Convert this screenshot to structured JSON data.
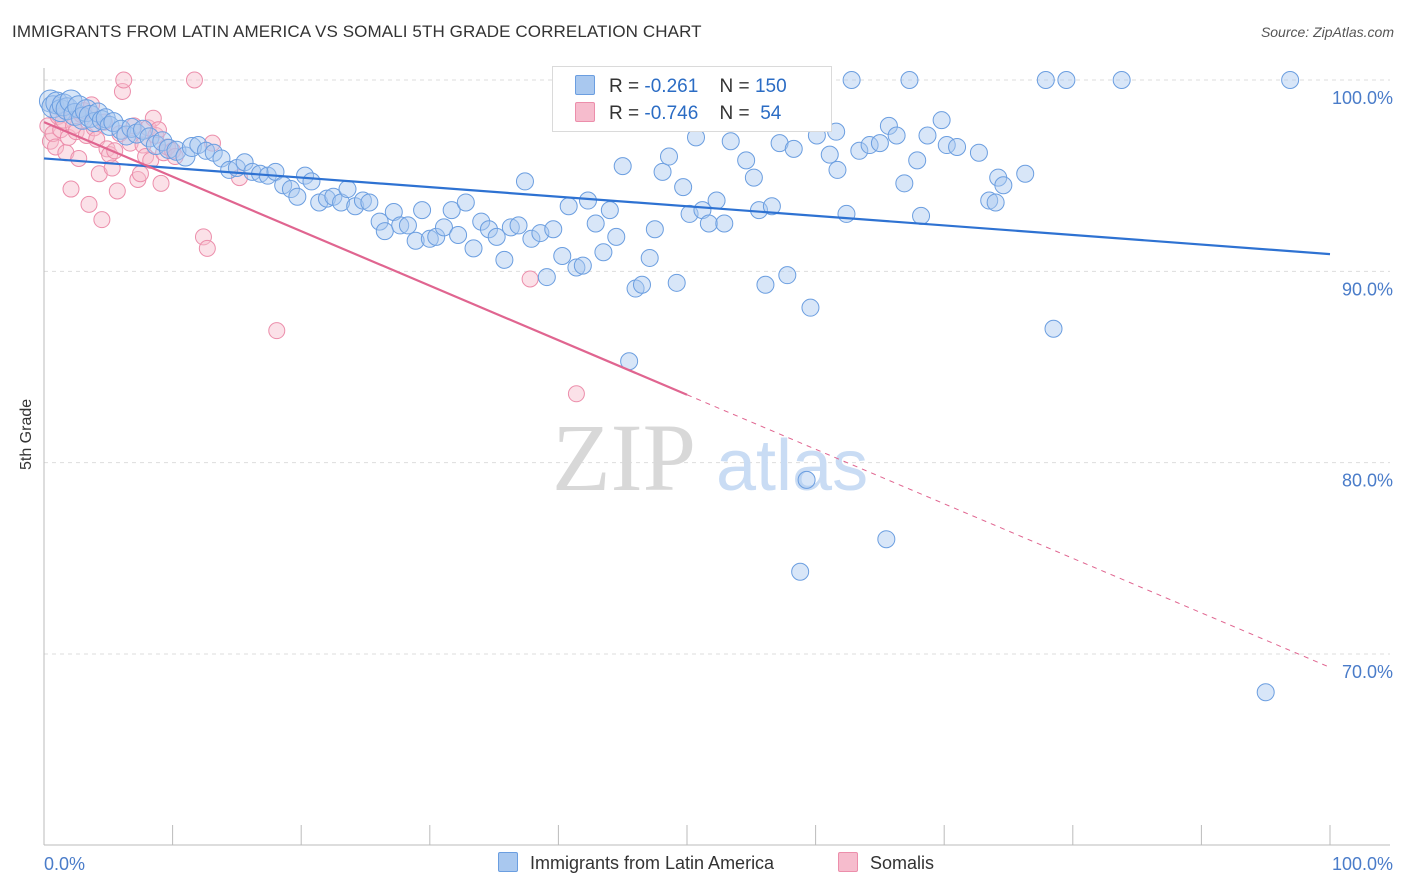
{
  "header": {
    "title": "IMMIGRANTS FROM LATIN AMERICA VS SOMALI 5TH GRADE CORRELATION CHART",
    "source": "Source: ZipAtlas.com"
  },
  "watermark": {
    "zip": "ZIP",
    "atlas": "atlas"
  },
  "legend_top": {
    "rows": [
      {
        "r_label": "R =",
        "r_value": "-0.261",
        "n_label": "N =",
        "n_value": "150"
      },
      {
        "r_label": "R =",
        "r_value": "-0.746",
        "n_label": "N =",
        "n_value": " 54"
      }
    ]
  },
  "legend_bottom": {
    "items": [
      {
        "label": "Immigrants from Latin America"
      },
      {
        "label": "Somalis"
      }
    ]
  },
  "colors": {
    "blue_fill": "#a9c8ef",
    "blue_stroke": "#6b9ee0",
    "blue_line": "#2e72d2",
    "pink_fill": "#f6bccd",
    "pink_stroke": "#ec8eab",
    "pink_line": "#e06590",
    "tick_text": "#4a7cc9",
    "grid": "#dddddd"
  },
  "chart_data": {
    "type": "scatter",
    "title": "IMMIGRANTS FROM LATIN AMERICA VS SOMALI 5TH GRADE CORRELATION CHART",
    "xlabel": "",
    "ylabel": "5th Grade",
    "xlim": [
      0,
      100
    ],
    "ylim": [
      60,
      103.5
    ],
    "x_tick_labels": [
      "0.0%",
      "100.0%"
    ],
    "y_ticks": [
      70,
      80,
      90,
      100
    ],
    "y_tick_labels": [
      "70.0%",
      "80.0%",
      "90.0%",
      "100.0%"
    ],
    "grid": true,
    "legend_placement": "top-center",
    "series": [
      {
        "name": "Immigrants from Latin America",
        "color": "#a9c8ef",
        "trend": {
          "x": [
            0,
            100
          ],
          "y": [
            95.9,
            90.9
          ],
          "solid_until": 100
        },
        "points": [
          [
            0.5,
            98.9
          ],
          [
            0.7,
            98.6
          ],
          [
            1.0,
            98.8
          ],
          [
            1.3,
            98.4
          ],
          [
            1.5,
            98.7
          ],
          [
            1.8,
            98.5
          ],
          [
            2.1,
            98.9
          ],
          [
            2.4,
            98.2
          ],
          [
            2.7,
            98.6
          ],
          [
            3.0,
            98.0
          ],
          [
            3.3,
            98.4
          ],
          [
            3.6,
            98.1
          ],
          [
            3.9,
            97.8
          ],
          [
            4.2,
            98.3
          ],
          [
            4.5,
            97.9
          ],
          [
            4.8,
            98.0
          ],
          [
            5.1,
            97.6
          ],
          [
            5.4,
            97.8
          ],
          [
            6.0,
            97.4
          ],
          [
            6.4,
            97.1
          ],
          [
            6.8,
            97.5
          ],
          [
            7.2,
            97.2
          ],
          [
            7.7,
            97.4
          ],
          [
            8.2,
            97.0
          ],
          [
            8.7,
            96.6
          ],
          [
            9.2,
            96.8
          ],
          [
            9.7,
            96.4
          ],
          [
            10.3,
            96.3
          ],
          [
            11.0,
            96.0
          ],
          [
            11.5,
            96.5
          ],
          [
            12.0,
            96.6
          ],
          [
            12.6,
            96.3
          ],
          [
            13.2,
            96.2
          ],
          [
            13.8,
            95.9
          ],
          [
            14.4,
            95.3
          ],
          [
            15.0,
            95.4
          ],
          [
            15.6,
            95.7
          ],
          [
            16.2,
            95.2
          ],
          [
            16.8,
            95.1
          ],
          [
            17.4,
            95.0
          ],
          [
            18.0,
            95.2
          ],
          [
            18.6,
            94.5
          ],
          [
            19.2,
            94.3
          ],
          [
            19.7,
            93.9
          ],
          [
            20.3,
            95.0
          ],
          [
            20.8,
            94.7
          ],
          [
            21.4,
            93.6
          ],
          [
            22.0,
            93.8
          ],
          [
            22.5,
            93.9
          ],
          [
            23.1,
            93.6
          ],
          [
            23.6,
            94.3
          ],
          [
            24.2,
            93.4
          ],
          [
            24.8,
            93.7
          ],
          [
            25.3,
            93.6
          ],
          [
            26.1,
            92.6
          ],
          [
            26.5,
            92.1
          ],
          [
            27.2,
            93.1
          ],
          [
            27.7,
            92.4
          ],
          [
            28.3,
            92.4
          ],
          [
            28.9,
            91.6
          ],
          [
            29.4,
            93.2
          ],
          [
            30.0,
            91.7
          ],
          [
            30.5,
            91.8
          ],
          [
            31.1,
            92.3
          ],
          [
            31.7,
            93.2
          ],
          [
            32.2,
            91.9
          ],
          [
            32.8,
            93.6
          ],
          [
            33.4,
            91.2
          ],
          [
            34.0,
            92.6
          ],
          [
            34.6,
            92.2
          ],
          [
            35.2,
            91.8
          ],
          [
            35.8,
            90.6
          ],
          [
            36.3,
            92.3
          ],
          [
            36.9,
            92.4
          ],
          [
            37.4,
            94.7
          ],
          [
            37.9,
            91.7
          ],
          [
            38.6,
            92.0
          ],
          [
            39.1,
            89.7
          ],
          [
            39.6,
            92.2
          ],
          [
            40.3,
            90.8
          ],
          [
            40.8,
            93.4
          ],
          [
            41.4,
            90.2
          ],
          [
            41.9,
            90.3
          ],
          [
            42.3,
            93.7
          ],
          [
            42.9,
            92.5
          ],
          [
            43.5,
            91.0
          ],
          [
            44.0,
            93.2
          ],
          [
            44.5,
            91.8
          ],
          [
            45.0,
            95.5
          ],
          [
            45.5,
            85.3
          ],
          [
            46.0,
            89.1
          ],
          [
            46.5,
            89.3
          ],
          [
            47.1,
            90.7
          ],
          [
            47.5,
            92.2
          ],
          [
            48.1,
            95.2
          ],
          [
            48.6,
            96.0
          ],
          [
            49.2,
            89.4
          ],
          [
            49.7,
            94.4
          ],
          [
            50.2,
            93.0
          ],
          [
            50.7,
            97.0
          ],
          [
            51.2,
            93.2
          ],
          [
            51.7,
            92.5
          ],
          [
            52.3,
            93.7
          ],
          [
            52.9,
            92.5
          ],
          [
            53.4,
            96.8
          ],
          [
            54.0,
            98.5
          ],
          [
            54.6,
            95.8
          ],
          [
            55.2,
            94.9
          ],
          [
            55.6,
            93.2
          ],
          [
            56.1,
            89.3
          ],
          [
            56.6,
            93.4
          ],
          [
            57.2,
            96.7
          ],
          [
            57.8,
            89.8
          ],
          [
            58.3,
            96.4
          ],
          [
            58.8,
            74.3
          ],
          [
            59.3,
            79.1
          ],
          [
            59.6,
            88.1
          ],
          [
            60.1,
            97.1
          ],
          [
            61.1,
            96.1
          ],
          [
            61.6,
            97.3
          ],
          [
            61.7,
            95.3
          ],
          [
            62.4,
            93.0
          ],
          [
            62.8,
            100.0
          ],
          [
            63.4,
            96.3
          ],
          [
            64.2,
            96.6
          ],
          [
            65.0,
            96.7
          ],
          [
            65.5,
            76.0
          ],
          [
            65.7,
            97.6
          ],
          [
            66.3,
            97.1
          ],
          [
            66.9,
            94.6
          ],
          [
            67.3,
            100.0
          ],
          [
            67.9,
            95.8
          ],
          [
            68.2,
            92.9
          ],
          [
            68.7,
            97.1
          ],
          [
            69.8,
            97.9
          ],
          [
            70.2,
            96.6
          ],
          [
            71.0,
            96.5
          ],
          [
            72.7,
            96.2
          ],
          [
            73.5,
            93.7
          ],
          [
            74.0,
            93.6
          ],
          [
            74.2,
            94.9
          ],
          [
            74.6,
            94.5
          ],
          [
            76.3,
            95.1
          ],
          [
            77.9,
            100.0
          ],
          [
            78.5,
            87.0
          ],
          [
            79.5,
            100.0
          ],
          [
            83.8,
            100.0
          ],
          [
            95.0,
            68.0
          ],
          [
            96.9,
            100.0
          ]
        ]
      },
      {
        "name": "Somalis",
        "color": "#f6bccd",
        "trend": {
          "x": [
            0,
            100
          ],
          "y": [
            97.8,
            69.3
          ],
          "solid_until": 50
        },
        "points": [
          [
            0.3,
            97.6
          ],
          [
            0.5,
            96.8
          ],
          [
            0.7,
            97.2
          ],
          [
            0.9,
            96.5
          ],
          [
            1.1,
            98.1
          ],
          [
            1.3,
            97.4
          ],
          [
            1.5,
            97.9
          ],
          [
            1.7,
            96.2
          ],
          [
            1.9,
            97.0
          ],
          [
            2.1,
            94.3
          ],
          [
            2.3,
            97.6
          ],
          [
            2.5,
            97.3
          ],
          [
            2.7,
            95.9
          ],
          [
            2.9,
            98.2
          ],
          [
            3.1,
            98.4
          ],
          [
            3.3,
            97.1
          ],
          [
            3.5,
            93.5
          ],
          [
            3.7,
            98.7
          ],
          [
            3.9,
            97.5
          ],
          [
            4.1,
            96.9
          ],
          [
            4.3,
            95.1
          ],
          [
            4.5,
            92.7
          ],
          [
            4.7,
            97.8
          ],
          [
            4.9,
            96.4
          ],
          [
            5.1,
            96.1
          ],
          [
            5.3,
            95.4
          ],
          [
            5.5,
            96.3
          ],
          [
            5.7,
            94.2
          ],
          [
            5.9,
            97.2
          ],
          [
            6.1,
            99.4
          ],
          [
            6.2,
            100.0
          ],
          [
            6.7,
            96.7
          ],
          [
            7.0,
            97.6
          ],
          [
            7.3,
            94.8
          ],
          [
            7.5,
            95.1
          ],
          [
            7.7,
            96.6
          ],
          [
            7.9,
            96.0
          ],
          [
            8.1,
            97.5
          ],
          [
            8.3,
            95.8
          ],
          [
            8.5,
            98.0
          ],
          [
            8.7,
            97.1
          ],
          [
            8.9,
            97.4
          ],
          [
            9.1,
            94.6
          ],
          [
            9.3,
            96.2
          ],
          [
            9.6,
            96.5
          ],
          [
            10.0,
            96.3
          ],
          [
            10.2,
            96.0
          ],
          [
            11.7,
            100.0
          ],
          [
            12.4,
            91.8
          ],
          [
            12.7,
            91.2
          ],
          [
            13.1,
            96.7
          ],
          [
            15.2,
            94.9
          ],
          [
            18.1,
            86.9
          ],
          [
            37.8,
            89.6
          ],
          [
            41.4,
            83.6
          ]
        ]
      }
    ]
  }
}
